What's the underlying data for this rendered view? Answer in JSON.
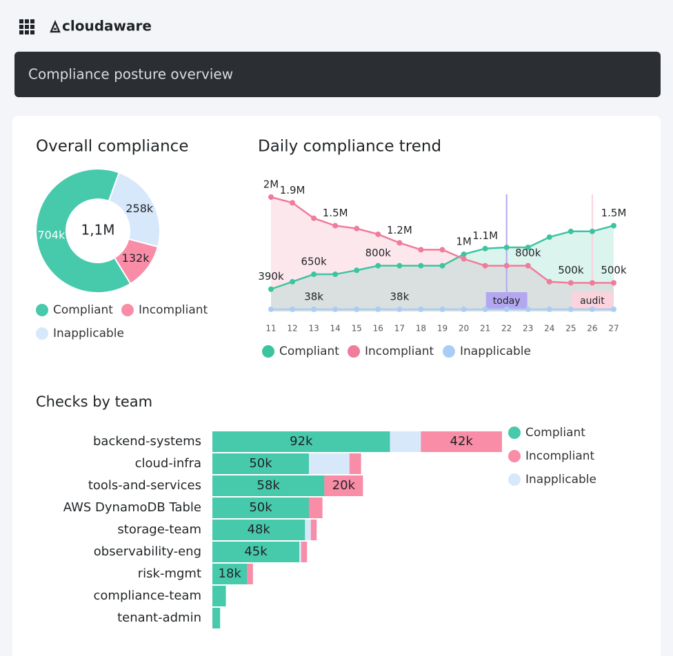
{
  "header": {
    "brand": "cloudaware",
    "title": "Compliance posture overview"
  },
  "chart_data": [
    {
      "type": "pie",
      "title": "Overall compliance",
      "center_label": "1,1M",
      "categories": [
        "Compliant",
        "Incompliant",
        "Inapplicable"
      ],
      "values": [
        704000,
        132000,
        258000
      ],
      "value_labels": [
        "704k",
        "132k",
        "258k"
      ],
      "colors": [
        "#47c9ab",
        "#f98ca6",
        "#d7e8fb"
      ]
    },
    {
      "type": "line",
      "title": "Daily compliance trend",
      "x": [
        11,
        12,
        13,
        14,
        15,
        16,
        17,
        18,
        19,
        20,
        21,
        22,
        23,
        24,
        25,
        26,
        27
      ],
      "xlim": [
        11,
        27
      ],
      "ylim": [
        0,
        2000000
      ],
      "series": [
        {
          "name": "Compliant",
          "color": "#3cc4a0",
          "values": [
            390000,
            520000,
            650000,
            650000,
            720000,
            800000,
            800000,
            800000,
            800000,
            1000000,
            1100000,
            1120000,
            1120000,
            1300000,
            1400000,
            1400000,
            1500000
          ],
          "value_labels": [
            "390k",
            null,
            "650k",
            null,
            null,
            "800k",
            null,
            null,
            null,
            "1M",
            "1.1M",
            null,
            null,
            null,
            null,
            null,
            "1.5M"
          ]
        },
        {
          "name": "Incompliant",
          "color": "#f07b9a",
          "values": [
            2000000,
            1900000,
            1630000,
            1500000,
            1450000,
            1350000,
            1200000,
            1080000,
            1080000,
            920000,
            800000,
            800000,
            800000,
            520000,
            500000,
            500000,
            500000
          ],
          "value_labels": [
            "2M",
            "1.9M",
            null,
            "1.5M",
            null,
            null,
            "1.2M",
            null,
            null,
            null,
            null,
            null,
            "800k",
            null,
            "500k",
            null,
            "500k"
          ]
        },
        {
          "name": "Inapplicable",
          "color": "#a9cdf5",
          "values": [
            38000,
            38000,
            38000,
            38000,
            38000,
            38000,
            38000,
            38000,
            38000,
            38000,
            38000,
            38000,
            38000,
            38000,
            38000,
            38000,
            38000
          ],
          "value_labels": [
            null,
            null,
            "38k",
            null,
            null,
            null,
            "38k",
            null,
            null,
            null,
            null,
            null,
            null,
            null,
            null,
            null,
            null
          ]
        }
      ],
      "annotations": [
        {
          "label": "today",
          "x": 22,
          "color": "#b4a7f0"
        },
        {
          "label": "audit",
          "x": 26,
          "color": "#fad3dd"
        }
      ]
    },
    {
      "type": "bar",
      "orientation": "horizontal",
      "stacked": true,
      "title": "Checks by team",
      "categories": [
        "backend-systems",
        "cloud-infra",
        "tools-and-services",
        "AWS DynamoDB Table",
        "storage-team",
        "observability-eng",
        "risk-mgmt",
        "compliance-team",
        "tenant-admin"
      ],
      "xlim": [
        0,
        150000
      ],
      "series": [
        {
          "name": "Compliant",
          "color": "#47c9ab",
          "values": [
            92000,
            50000,
            58000,
            50000,
            48000,
            45000,
            18000,
            7000,
            4000
          ],
          "value_labels": [
            "92k",
            "50k",
            "58k",
            "50k",
            "48k",
            "45k",
            "18k",
            null,
            null
          ]
        },
        {
          "name": "Incompliant",
          "color": "#f98ca6",
          "values": [
            42000,
            6000,
            20000,
            7000,
            3000,
            3000,
            3000,
            0,
            0
          ],
          "value_labels": [
            "42k",
            null,
            "20k",
            null,
            null,
            null,
            null,
            null,
            null
          ]
        },
        {
          "name": "Inapplicable",
          "color": "#d7e8fb",
          "values": [
            16000,
            21000,
            0,
            0,
            3000,
            1000,
            0,
            0,
            0
          ],
          "value_labels": [
            null,
            null,
            null,
            null,
            null,
            null,
            null,
            null,
            null
          ]
        }
      ]
    }
  ]
}
